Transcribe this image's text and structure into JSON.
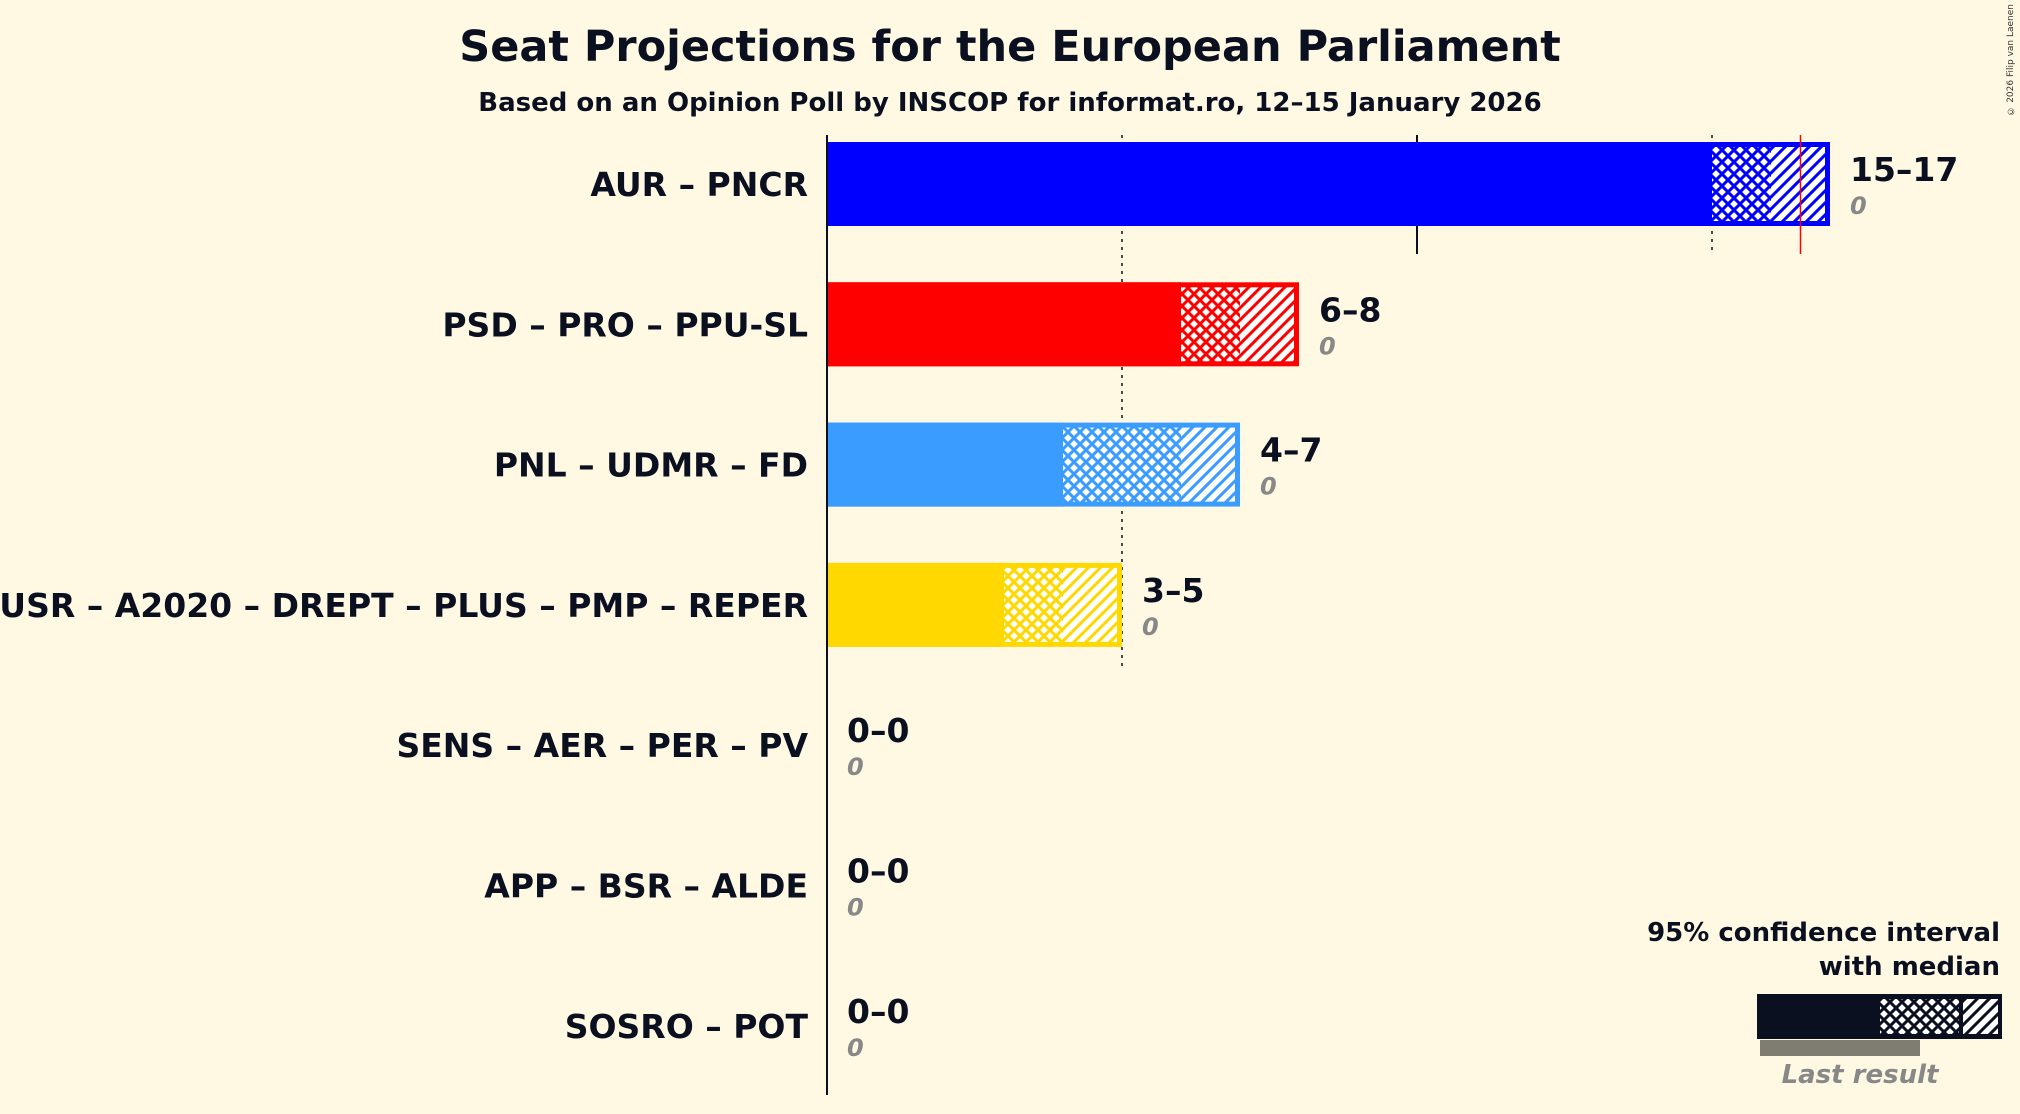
{
  "chart_data": {
    "type": "bar",
    "title": "Seat Projections for the European Parliament",
    "subtitle": "Based on an Opinion Poll by INSCOP for informat.ro, 12–15 January 2026",
    "copyright": "© 2026 Filip van Laenen",
    "xlim": [
      0,
      17
    ],
    "gridlines": [
      5,
      10,
      15
    ],
    "majority_line": 16.5,
    "parties": [
      {
        "name": "AUR – PNCR",
        "color": "#0000ff",
        "low": 15,
        "median": 16,
        "high": 17,
        "range": "15–17",
        "last_result": 0,
        "last_label": "0"
      },
      {
        "name": "PSD – PRO – PPU-SL",
        "color": "#ff0000",
        "low": 6,
        "median": 7,
        "high": 8,
        "range": "6–8",
        "last_result": 0,
        "last_label": "0"
      },
      {
        "name": "PNL – UDMR – FD",
        "color": "#3a9cff",
        "low": 4,
        "median": 6,
        "high": 7,
        "range": "4–7",
        "last_result": 0,
        "last_label": "0"
      },
      {
        "name": "USR – A2020 – DREPT – PLUS – PMP – REPER",
        "color": "#ffd800",
        "low": 3,
        "median": 4,
        "high": 5,
        "range": "3–5",
        "last_result": 0,
        "last_label": "0"
      },
      {
        "name": "SENS – AER – PER – PV",
        "color": "#888888",
        "low": 0,
        "median": 0,
        "high": 0,
        "range": "0–0",
        "last_result": 0,
        "last_label": "0"
      },
      {
        "name": "APP – BSR – ALDE",
        "color": "#888888",
        "low": 0,
        "median": 0,
        "high": 0,
        "range": "0–0",
        "last_result": 0,
        "last_label": "0"
      },
      {
        "name": "SOSRO – POT",
        "color": "#888888",
        "low": 0,
        "median": 0,
        "high": 0,
        "range": "0–0",
        "last_result": 0,
        "last_label": "0"
      }
    ],
    "legend": {
      "title_line1": "95% confidence interval",
      "title_line2": "with median",
      "last_result_label": "Last result",
      "placement": "bottom-right",
      "color": "#0b1020",
      "last_color": "#7f7d72"
    }
  }
}
